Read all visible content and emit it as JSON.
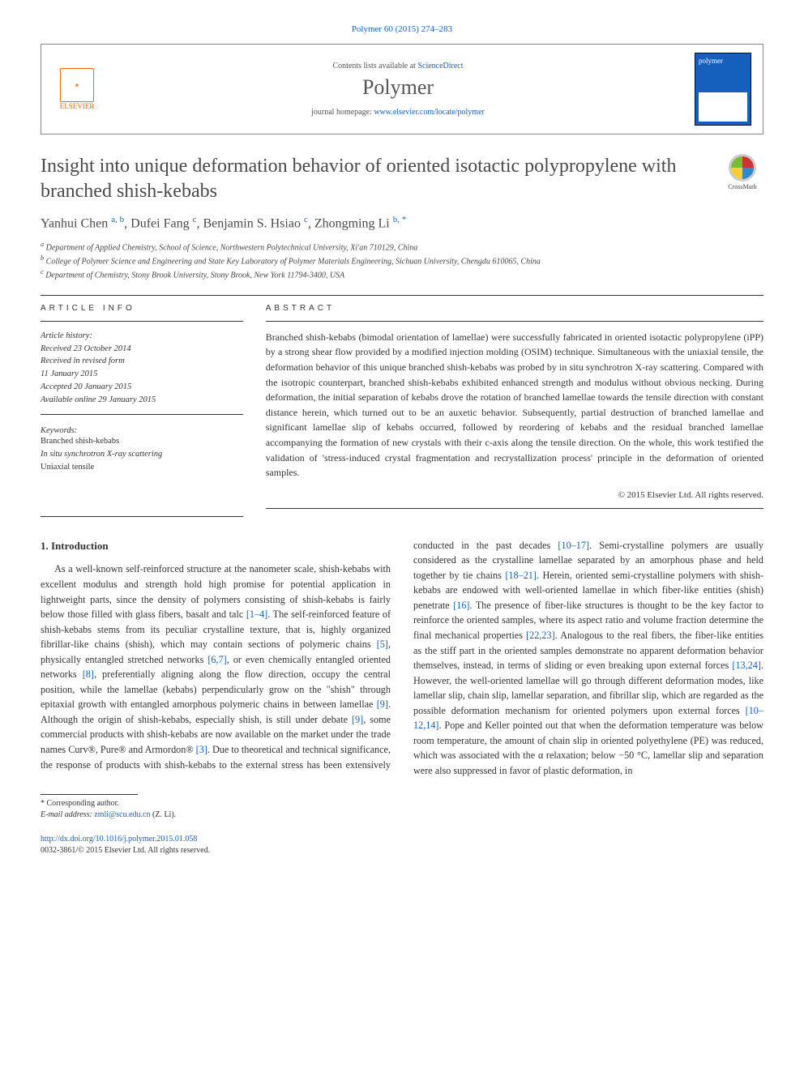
{
  "journal_ref": {
    "text": "Polymer 60 (2015) 274–283",
    "color": "#505050",
    "fontsize": 11
  },
  "header": {
    "contents_line_prefix": "Contents lists available at ",
    "contents_link": "ScienceDirect",
    "journal_name": "Polymer",
    "homepage_prefix": "journal homepage: ",
    "homepage_url": "www.elsevier.com/locate/polymer",
    "publisher_label": "ELSEVIER",
    "cover_label": "polymer",
    "link_color": "#1560bd"
  },
  "crossmark_label": "CrossMark",
  "title": "Insight into unique deformation behavior of oriented isotactic polypropylene with branched shish-kebabs",
  "title_style": {
    "fontsize": 24,
    "color": "#4a4a4a"
  },
  "authors_html": {
    "a1": "Yanhui Chen",
    "a1_aff": "a, b",
    "a2": "Dufei Fang",
    "a2_aff": "c",
    "a3": "Benjamin S. Hsiao",
    "a3_aff": "c",
    "a4": "Zhongming Li",
    "a4_aff": "b, *"
  },
  "affiliations": [
    {
      "marker": "a",
      "text": "Department of Applied Chemistry, School of Science, Northwestern Polytechnical University, Xi'an 710129, China"
    },
    {
      "marker": "b",
      "text": "College of Polymer Science and Engineering and State Key Laboratory of Polymer Materials Engineering, Sichuan University, Chengdu 610065, China"
    },
    {
      "marker": "c",
      "text": "Department of Chemistry, Stony Brook University, Stony Brook, New York 11794-3400, USA"
    }
  ],
  "article_info": {
    "label": "ARTICLE INFO",
    "history_head": "Article history:",
    "history": [
      "Received 23 October 2014",
      "Received in revised form",
      "11 January 2015",
      "Accepted 20 January 2015",
      "Available online 29 January 2015"
    ],
    "keywords_head": "Keywords:",
    "keywords": [
      "Branched shish-kebabs",
      "In situ synchrotron X-ray scattering",
      "Uniaxial tensile"
    ]
  },
  "abstract": {
    "label": "ABSTRACT",
    "text": "Branched shish-kebabs (bimodal orientation of lamellae) were successfully fabricated in oriented isotactic polypropylene (iPP) by a strong shear flow provided by a modified injection molding (OSIM) technique. Simultaneous with the uniaxial tensile, the deformation behavior of this unique branched shish-kebabs was probed by in situ synchrotron X-ray scattering. Compared with the isotropic counterpart, branched shish-kebabs exhibited enhanced strength and modulus without obvious necking. During deformation, the initial separation of kebabs drove the rotation of branched lamellae towards the tensile direction with constant distance herein, which turned out to be an auxetic behavior. Subsequently, partial destruction of branched lamellae and significant lamellae slip of kebabs occurred, followed by reordering of kebabs and the residual branched lamellae accompanying the formation of new crystals with their c-axis along the tensile direction. On the whole, this work testified the validation of 'stress-induced crystal fragmentation and recrystallization process' principle in the deformation of oriented samples.",
    "copyright": "© 2015 Elsevier Ltd. All rights reserved."
  },
  "body": {
    "section_number": "1.",
    "section_title": "Introduction",
    "para1_a": "As a well-known self-reinforced structure at the nanometer scale, shish-kebabs with excellent modulus and strength hold high promise for potential application in lightweight parts, since the density of polymers consisting of shish-kebabs is fairly below those filled with glass fibers, basalt and talc ",
    "ref1": "[1–4]",
    "para1_b": ". The self-reinforced feature of shish-kebabs stems from its peculiar crystalline texture, that is, highly organized fibrillar-like chains (shish), which may contain sections of polymeric chains ",
    "ref2": "[5]",
    "para1_c": ", physically entangled stretched networks ",
    "ref3": "[6,7]",
    "para1_d": ", or even chemically entangled oriented networks ",
    "ref4": "[8]",
    "para1_e": ", preferentially aligning along the flow direction, occupy the central position, while the lamellae (kebabs) perpendicularly grow on the \"shish\" through epitaxial growth with entangled amorphous polymeric chains in between lamellae ",
    "ref5": "[9]",
    "para1_f": ". Although the origin of shish-kebabs, especially shish, is still under debate ",
    "ref6": "[9]",
    "para1_g": ", some commercial products with shish-kebabs are now available on the market under the trade names Curv®, Pure® and Armordon® ",
    "ref7": "[3]",
    "para1_h": ". Due to theoretical and technical significance, the ",
    "para2_a": "response of products with shish-kebabs to the external stress has been extensively conducted in the past decades ",
    "ref8": "[10–17]",
    "para2_b": ". Semi-crystalline polymers are usually considered as the crystalline lamellae separated by an amorphous phase and held together by tie chains ",
    "ref9": "[18–21]",
    "para2_c": ". Herein, oriented semi-crystalline polymers with shish-kebabs are endowed with well-oriented lamellae in which fiber-like entities (shish) penetrate ",
    "ref10": "[16]",
    "para2_d": ". The presence of fiber-like structures is thought to be the key factor to reinforce the oriented samples, where its aspect ratio and volume fraction determine the final mechanical properties ",
    "ref11": "[22,23]",
    "para2_e": ". Analogous to the real fibers, the fiber-like entities as the stiff part in the oriented samples demonstrate no apparent deformation behavior themselves, instead, in terms of sliding or even breaking upon external forces ",
    "ref12": "[13,24]",
    "para2_f": ". However, the well-oriented lamellae will go through different deformation modes, like lamellar slip, chain slip, lamellar separation, and fibrillar slip, which are regarded as the possible deformation mechanism for oriented polymers upon external forces ",
    "ref13": "[10–12,14]",
    "para2_g": ". Pope and Keller pointed out that when the deformation temperature was below room temperature, the amount of chain slip in oriented polyethylene (PE) was reduced, which was associated with the α relaxation; below −50 °C, lamellar slip and separation were also suppressed in favor of plastic deformation, in"
  },
  "footnote": {
    "corr_label": "* Corresponding author.",
    "email_label": "E-mail address:",
    "email": "zmli@scu.edu.cn",
    "email_who": "(Z. Li)."
  },
  "doi": {
    "url": "http://dx.doi.org/10.1016/j.polymer.2015.01.058",
    "issn_line": "0032-3861/© 2015 Elsevier Ltd. All rights reserved."
  },
  "colors": {
    "link": "#1560bd",
    "elsevier_orange": "#ff6600",
    "text": "#333333",
    "rule": "#333333"
  }
}
